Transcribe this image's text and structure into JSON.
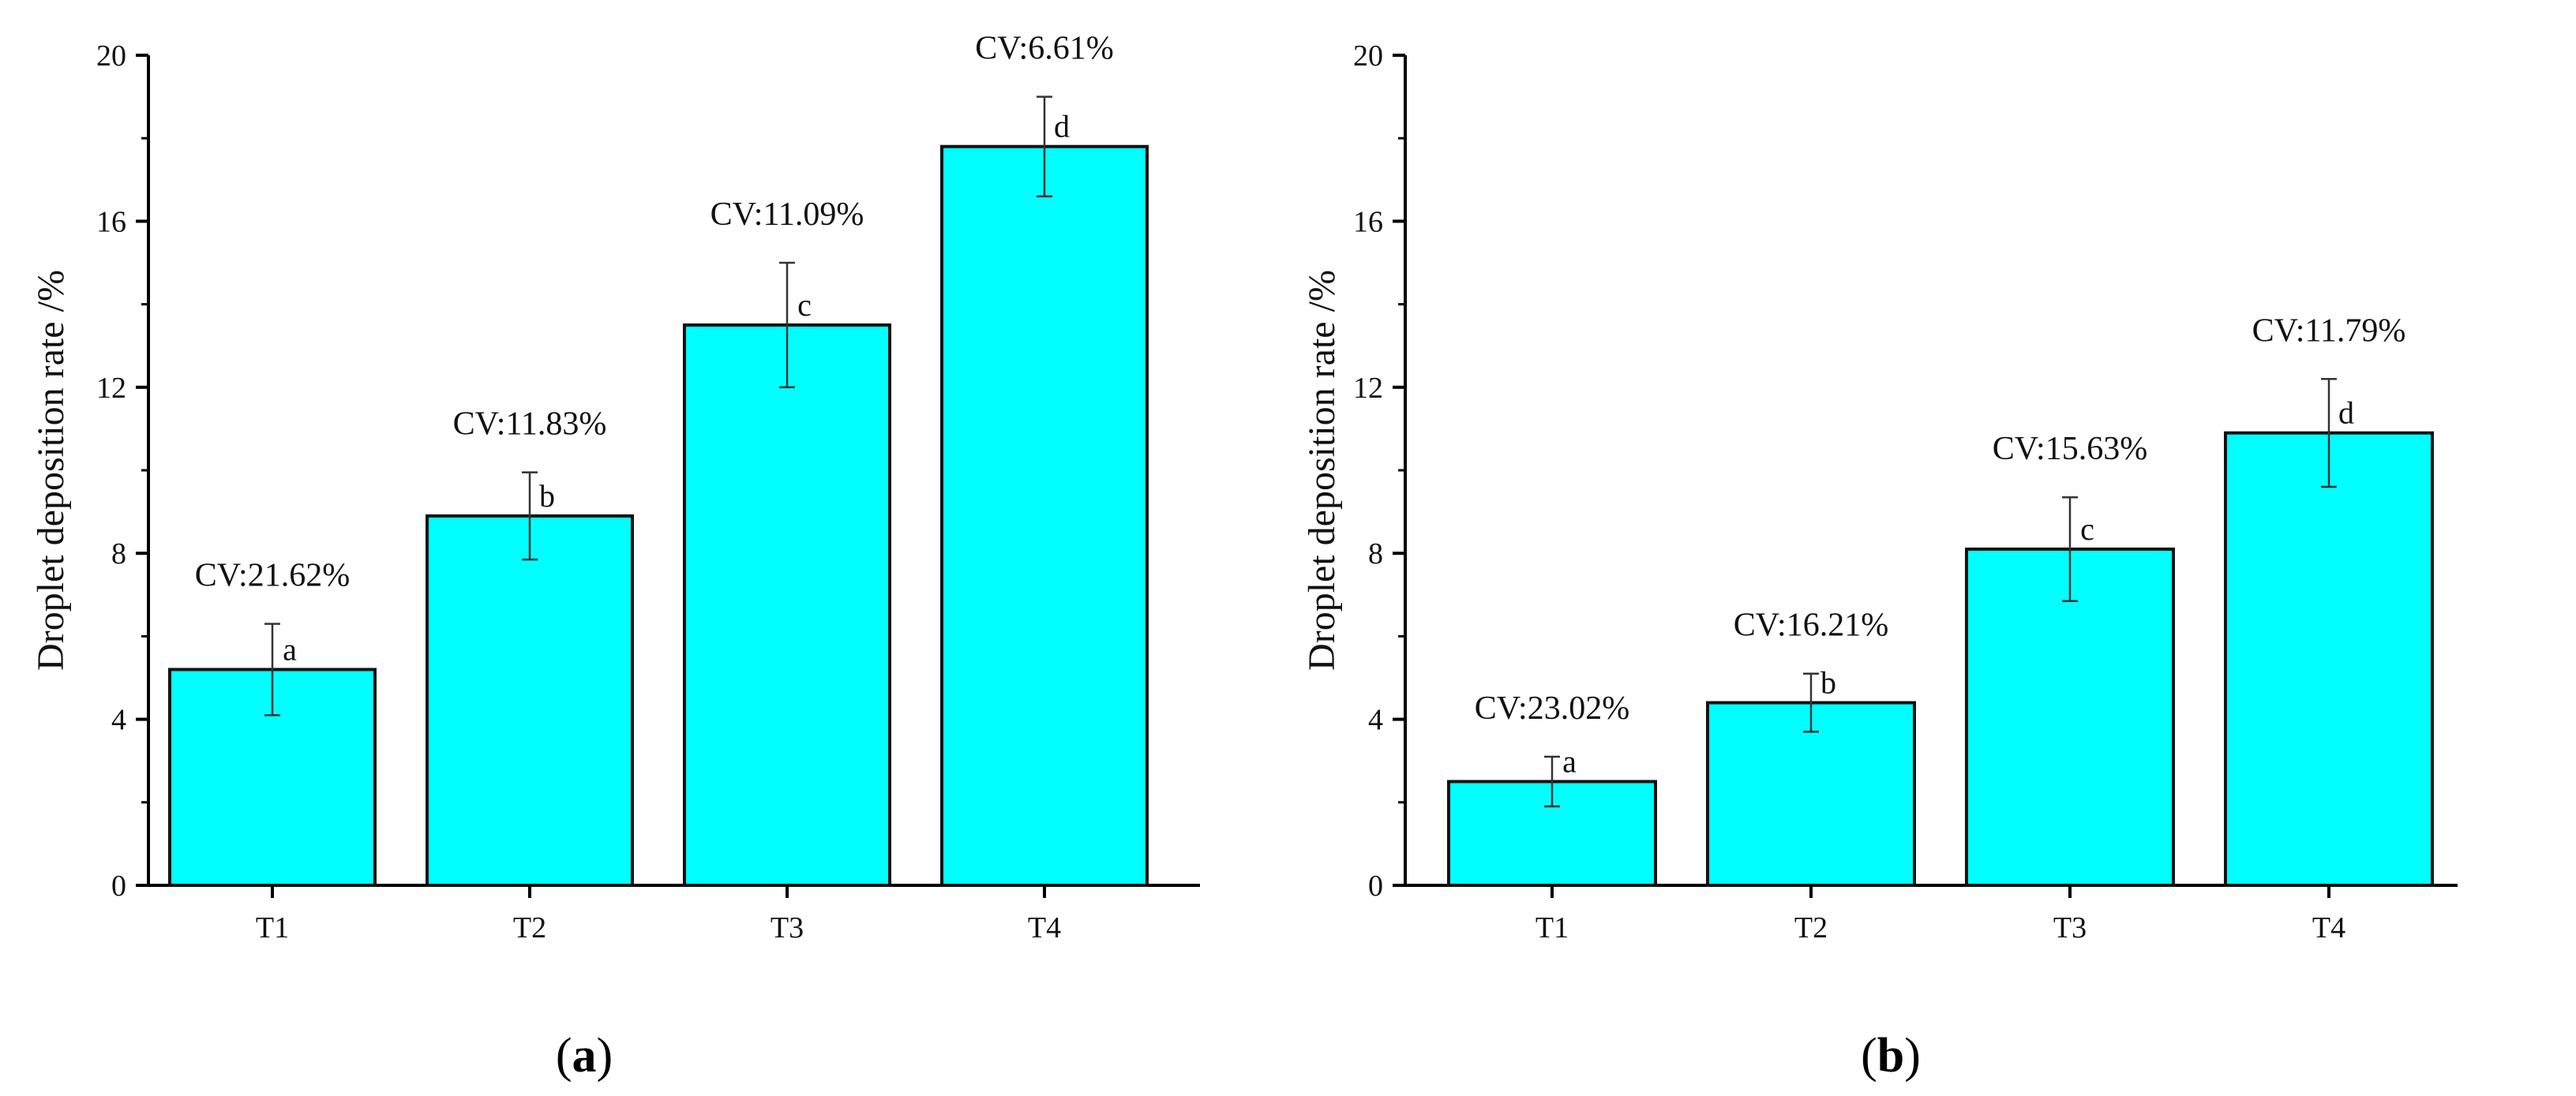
{
  "chart_data": [
    {
      "type": "bar",
      "panel_label": "a",
      "panel_open": "(",
      "panel_close": ")",
      "categories": [
        "T1",
        "T2",
        "T3",
        "T4"
      ],
      "values": [
        5.2,
        8.9,
        13.5,
        17.8
      ],
      "errors": [
        1.1,
        1.05,
        1.5,
        1.2
      ],
      "cv_labels": [
        "CV:21.62%",
        "CV:11.83%",
        "CV:11.09%",
        "CV:6.61%"
      ],
      "significance": [
        "a",
        "b",
        "c",
        "d"
      ],
      "xlabel": "",
      "ylabel": "Droplet deposition rate /%",
      "ylim": [
        0,
        20
      ],
      "yticks": [
        0,
        4,
        8,
        12,
        16,
        20
      ],
      "bar_color": "#00ffff"
    },
    {
      "type": "bar",
      "panel_label": "b",
      "panel_open": "(",
      "panel_close": ")",
      "categories": [
        "T1",
        "T2",
        "T3",
        "T4"
      ],
      "values": [
        2.5,
        4.4,
        8.1,
        10.9
      ],
      "errors": [
        0.6,
        0.7,
        1.25,
        1.3
      ],
      "cv_labels": [
        "CV:23.02%",
        "CV:16.21%",
        "CV:15.63%",
        "CV:11.79%"
      ],
      "significance": [
        "a",
        "b",
        "c",
        "d"
      ],
      "xlabel": "",
      "ylabel": "Droplet deposition rate /%",
      "ylim": [
        0,
        20
      ],
      "yticks": [
        0,
        4,
        8,
        12,
        16,
        20
      ],
      "bar_color": "#00ffff"
    }
  ]
}
